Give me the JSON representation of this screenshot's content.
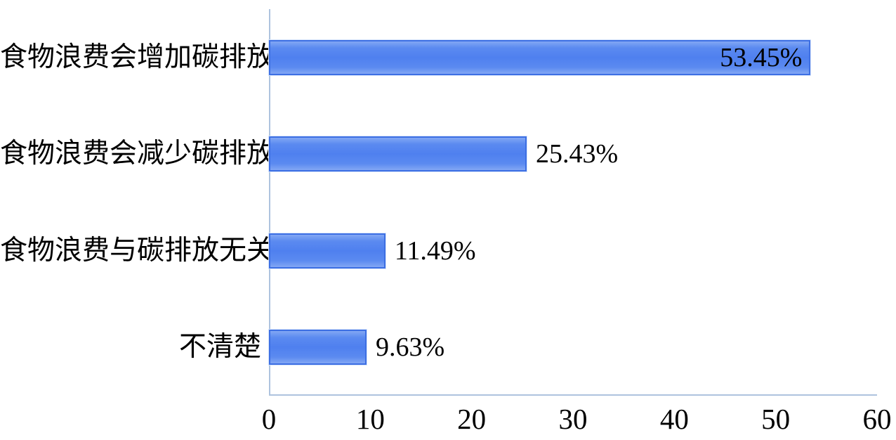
{
  "chart_data": {
    "type": "bar",
    "orientation": "horizontal",
    "title": "",
    "xlabel": "",
    "ylabel": "",
    "categories": [
      "食物浪费会增加碳排放",
      "食物浪费会减少碳排放",
      "食物浪费与碳排放无关",
      "不清楚"
    ],
    "values": [
      53.45,
      25.43,
      11.49,
      9.63
    ],
    "value_labels": [
      "53.45%",
      "25.43%",
      "11.49%",
      "9.63%"
    ],
    "value_label_placement": [
      "inside-end",
      "outside-end",
      "outside-end",
      "outside-end"
    ],
    "x_ticks": [
      "0",
      "10",
      "20",
      "30",
      "40",
      "50",
      "60"
    ],
    "xlim": [
      0,
      60
    ],
    "grid": false,
    "legend": false,
    "colors": {
      "bar_fill": "#4f80ef",
      "bar_fill_light": "#82a7f4",
      "bar_border": "#3d6fe3",
      "bar_outer_halo": "#d9e6fb",
      "axis_line": "#aec3de",
      "text": "#000000",
      "background": "#ffffff"
    }
  }
}
